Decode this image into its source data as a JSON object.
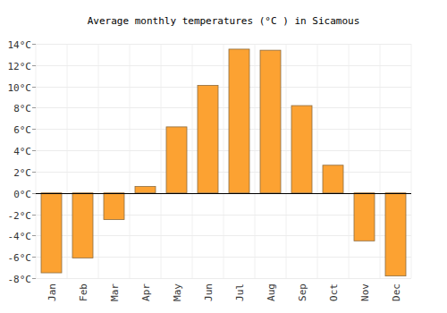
{
  "chart_data": {
    "type": "bar",
    "title": "Average monthly temperatures (°C ) in Sicamous",
    "categories": [
      "Jan",
      "Feb",
      "Mar",
      "Apr",
      "May",
      "Jun",
      "Jul",
      "Aug",
      "Sep",
      "Oct",
      "Nov",
      "Dec"
    ],
    "values": [
      -7.5,
      -6.1,
      -2.5,
      0.6,
      6.2,
      10.1,
      13.5,
      13.4,
      8.2,
      2.6,
      -4.5,
      -7.8
    ],
    "color": "#fca232",
    "ylim": [
      -8,
      14
    ],
    "yticks": [
      {
        "value": -8,
        "label": "-8°C"
      },
      {
        "value": -6,
        "label": "-6°C"
      },
      {
        "value": -4,
        "label": "-4°C"
      },
      {
        "value": -2,
        "label": "-2°C"
      },
      {
        "value": 0,
        "label": "0°C"
      },
      {
        "value": 2,
        "label": "2°C"
      },
      {
        "value": 4,
        "label": "4°C"
      },
      {
        "value": 6,
        "label": "6°C"
      },
      {
        "value": 8,
        "label": "8°C"
      },
      {
        "value": 10,
        "label": "10°C"
      },
      {
        "value": 12,
        "label": "12°C"
      },
      {
        "value": 14,
        "label": "14°C"
      }
    ],
    "grid": true
  }
}
